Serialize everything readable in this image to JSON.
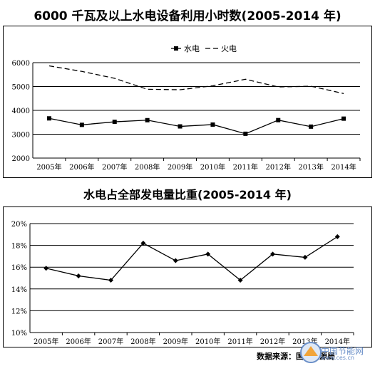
{
  "chart_data": [
    {
      "type": "line",
      "title": "6000 千瓦及以上水电设备利用小时数(2005-2014 年)",
      "categories": [
        "2005年",
        "2006年",
        "2007年",
        "2008年",
        "2009年",
        "2010年",
        "2011年",
        "2012年",
        "2013年",
        "2014年"
      ],
      "yticks": [
        "2000",
        "3000",
        "4000",
        "5000",
        "6000"
      ],
      "ylim": [
        2000,
        6000
      ],
      "grid": true,
      "legend_position": "top-center",
      "series": [
        {
          "name": "水电",
          "style": "solid-square-markers",
          "color": "#000000",
          "values": [
            3664,
            3393,
            3520,
            3589,
            3328,
            3404,
            3019,
            3591,
            3318,
            3653
          ]
        },
        {
          "name": "火电",
          "style": "dashed",
          "color": "#000000",
          "values": [
            5865,
            5633,
            5344,
            4885,
            4865,
            5031,
            5305,
            4982,
            5012,
            4706
          ]
        }
      ]
    },
    {
      "type": "line",
      "title": "水电占全部发电量比重(2005-2014 年)",
      "categories": [
        "2005年",
        "2006年",
        "2007年",
        "2008年",
        "2009年",
        "2010年",
        "2011年",
        "2012年",
        "2013年",
        "2014年"
      ],
      "yticks": [
        "10%",
        "12%",
        "14%",
        "16%",
        "18%",
        "20%"
      ],
      "ylim": [
        10,
        20
      ],
      "grid": true,
      "series": [
        {
          "name": "",
          "style": "solid-diamond-markers",
          "color": "#000000",
          "values": [
            15.9,
            15.2,
            14.8,
            18.2,
            16.6,
            17.2,
            14.8,
            17.2,
            16.9,
            18.8
          ]
        }
      ]
    }
  ],
  "source_text": "数据来源：国家能源局",
  "watermark": {
    "text": "中国节能网",
    "url": "www.ces.cn",
    "color": "#6a8fc8"
  }
}
